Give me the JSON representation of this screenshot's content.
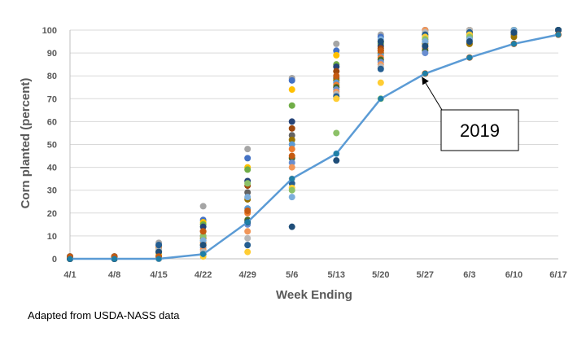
{
  "chart_data": {
    "type": "scatter",
    "title": "",
    "xlabel": "Week Ending",
    "ylabel": "Corn planted (percent)",
    "categories": [
      "4/1",
      "4/8",
      "4/15",
      "4/22",
      "4/29",
      "5/6",
      "5/13",
      "5/20",
      "5/27",
      "6/3",
      "6/10",
      "6/17"
    ],
    "ylim": [
      0,
      100
    ],
    "yticks": [
      0,
      10,
      20,
      30,
      40,
      50,
      60,
      70,
      80,
      90,
      100
    ],
    "grid": "horizontal",
    "legend": "none",
    "line_series": {
      "name": "2019",
      "color": "#5b9bd5",
      "values": [
        0,
        0,
        0,
        2,
        16,
        35,
        46,
        70,
        81,
        88,
        94,
        98
      ]
    },
    "scatter_points": [
      {
        "week": "4/1",
        "values": [
          0,
          1,
          0,
          1,
          0,
          0,
          0,
          1,
          0,
          0,
          0,
          1,
          0,
          0,
          1,
          0,
          0,
          0,
          0,
          1
        ]
      },
      {
        "week": "4/8",
        "values": [
          0,
          1,
          0,
          1,
          0,
          0,
          0,
          1,
          0,
          0,
          0,
          1,
          0,
          0,
          1,
          0,
          0,
          0,
          0,
          1
        ]
      },
      {
        "week": "4/15",
        "values": [
          7,
          6,
          5,
          4,
          3,
          2,
          1,
          0,
          2,
          5,
          3,
          1,
          0,
          4,
          6,
          2,
          1,
          0,
          3,
          1
        ]
      },
      {
        "week": "4/22",
        "values": [
          23,
          17,
          16,
          15,
          14,
          12,
          10,
          9,
          8,
          7,
          6,
          5,
          4,
          3,
          2,
          1,
          10,
          8,
          6,
          12
        ]
      },
      {
        "week": "4/29",
        "values": [
          48,
          44,
          40,
          39,
          34,
          32,
          29,
          26,
          22,
          20,
          17,
          15,
          12,
          9,
          6,
          3,
          33,
          27,
          16,
          21
        ]
      },
      {
        "week": "5/6",
        "values": [
          79,
          78,
          74,
          67,
          60,
          57,
          54,
          52,
          50,
          48,
          44,
          42,
          40,
          35,
          33,
          31,
          30,
          27,
          14,
          45
        ]
      },
      {
        "week": "5/13",
        "values": [
          94,
          91,
          89,
          85,
          84,
          82,
          79,
          78,
          77,
          76,
          75,
          74,
          73,
          72,
          71,
          70,
          55,
          46,
          43,
          80
        ]
      },
      {
        "week": "5/20",
        "values": [
          98,
          97,
          95,
          94,
          93,
          92,
          91,
          90,
          89,
          88,
          87,
          86,
          85,
          84,
          83,
          77,
          70,
          96,
          95,
          91
        ]
      },
      {
        "week": "5/27",
        "values": [
          100,
          100,
          99,
          98,
          97,
          96,
          95,
          94,
          93,
          92,
          91,
          90,
          100,
          99,
          98,
          97,
          96,
          95,
          93,
          81
        ]
      },
      {
        "week": "6/3",
        "values": [
          100,
          100,
          100,
          99,
          98,
          97,
          96,
          94,
          100,
          99,
          98,
          97,
          100,
          100,
          99,
          98,
          97,
          96,
          95,
          88
        ]
      },
      {
        "week": "6/10",
        "values": [
          100,
          100,
          100,
          100,
          100,
          99,
          98,
          97,
          100,
          100,
          99,
          100,
          100,
          100,
          99,
          100,
          100,
          100,
          99,
          94
        ]
      },
      {
        "week": "6/17",
        "values": [
          100,
          100,
          100,
          100,
          100,
          100,
          100,
          100,
          100,
          100,
          100,
          100,
          100,
          100,
          100,
          100,
          100,
          100,
          100,
          98
        ]
      }
    ],
    "scatter_colors": [
      "#a5a5a5",
      "#4472c4",
      "#ffc000",
      "#70ad47",
      "#264478",
      "#9e480e",
      "#636363",
      "#997300",
      "#5b9bd5",
      "#ed7d31",
      "#43682b",
      "#698ed0",
      "#f1975a",
      "#b7b7b7",
      "#255e91",
      "#ffcd33",
      "#8cc168",
      "#7caedb",
      "#1f4e79",
      "#c55a11"
    ],
    "annotation": {
      "text": "2019",
      "points_to": {
        "week": "5/27",
        "value": 81
      }
    },
    "source_note": "Adapted from USDA-NASS data"
  }
}
